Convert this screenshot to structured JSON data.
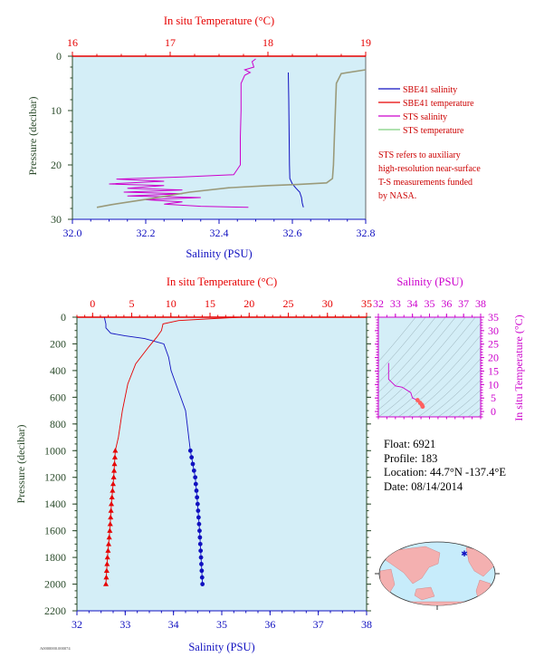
{
  "colors": {
    "plot_bg": "#d4eef7",
    "red": "#e60000",
    "blue": "#1010c0",
    "magenta": "#cc00cc",
    "green": "#7fd07f",
    "dark_green": "#2a4a2a",
    "legend_text": "#cc0000"
  },
  "top_chart": {
    "top_axis_title": "In situ Temperature (°C)",
    "bottom_axis_title": "Salinity (PSU)",
    "left_axis_title": "Pressure (decibar)",
    "legend": [
      {
        "label": "SBE41 salinity",
        "color": "#1010c0"
      },
      {
        "label": "SBE41 temperature",
        "color": "#e60000"
      },
      {
        "label": "STS salinity",
        "color": "#cc00cc"
      },
      {
        "label": "STS temperature",
        "color": "#7fd07f"
      }
    ],
    "note": [
      "STS refers to auxiliary",
      "high-resolution near-surface",
      "T-S measurements funded",
      "by NASA."
    ]
  },
  "bottom_chart": {
    "top_axis_title": "In situ Temperature (°C)",
    "bottom_axis_title": "Salinity (PSU)",
    "left_axis_title": "Pressure (decibar)",
    "footer_code": "A0000000.000074"
  },
  "ts_chart": {
    "top_axis_title": "Salinity (PSU)",
    "right_axis_title": "In situ Temperature (°C)"
  },
  "float_info": {
    "float": "Float:  6921",
    "profile": "Profile:  183",
    "location": "Location:  44.7°N  -137.4°E",
    "date": "Date:  08/14/2014"
  },
  "chart_data": [
    {
      "type": "line",
      "title": "",
      "y_axis": {
        "label": "Pressure (decibar)",
        "range": [
          0,
          30
        ],
        "inverted": true,
        "ticks": [
          0,
          10,
          20,
          30
        ]
      },
      "x_bottom": {
        "label": "Salinity (PSU)",
        "range": [
          32.0,
          32.8
        ],
        "ticks": [
          "32.0",
          "32.2",
          "32.4",
          "32.6",
          "32.8"
        ]
      },
      "x_top": {
        "label": "In situ Temperature (°C)",
        "range": [
          16,
          19
        ],
        "ticks": [
          "16",
          "17",
          "18",
          "19"
        ]
      },
      "series": [
        {
          "name": "SBE41 salinity",
          "axis": "salinity",
          "points": [
            [
              32.589,
              3
            ],
            [
              32.59,
              8
            ],
            [
              32.591,
              14
            ],
            [
              32.592,
              20
            ],
            [
              32.593,
              22.5
            ],
            [
              32.6,
              23.5
            ],
            [
              32.61,
              24.3
            ],
            [
              32.62,
              25
            ],
            [
              32.625,
              26
            ],
            [
              32.627,
              27
            ],
            [
              32.63,
              27.8
            ]
          ]
        },
        {
          "name": "SBE41 temperature",
          "axis": "temperature",
          "points": []
        },
        {
          "name": "STS salinity",
          "axis": "salinity",
          "points": [
            [
              32.5,
              0.5
            ],
            [
              32.49,
              1
            ],
            [
              32.495,
              2
            ],
            [
              32.47,
              2.5
            ],
            [
              32.485,
              3
            ],
            [
              32.47,
              3.5
            ],
            [
              32.46,
              5
            ],
            [
              32.46,
              10
            ],
            [
              32.458,
              15
            ],
            [
              32.458,
              20
            ],
            [
              32.44,
              21.8
            ],
            [
              32.3,
              22.2
            ],
            [
              32.12,
              22.6
            ],
            [
              32.25,
              23
            ],
            [
              32.1,
              23.5
            ],
            [
              32.25,
              23.8
            ],
            [
              32.15,
              24.3
            ],
            [
              32.3,
              24.6
            ],
            [
              32.14,
              25
            ],
            [
              32.3,
              25.3
            ],
            [
              32.15,
              25.7
            ],
            [
              32.35,
              26
            ],
            [
              32.2,
              26.4
            ],
            [
              32.3,
              26.8
            ],
            [
              32.25,
              27.2
            ],
            [
              32.35,
              27.6
            ],
            [
              32.48,
              27.8
            ]
          ]
        },
        {
          "name": "STS temperature",
          "axis": "temperature",
          "points": [
            [
              19.0,
              2.5
            ],
            [
              18.75,
              3.2
            ],
            [
              18.7,
              5
            ],
            [
              18.69,
              10
            ],
            [
              18.68,
              15
            ],
            [
              18.67,
              20
            ],
            [
              18.66,
              22.5
            ],
            [
              18.6,
              23.3
            ],
            [
              18.3,
              23.6
            ],
            [
              18.0,
              23.8
            ],
            [
              17.6,
              24.2
            ],
            [
              17.2,
              25
            ],
            [
              16.8,
              26.2
            ],
            [
              16.4,
              27.3
            ],
            [
              16.25,
              27.8
            ]
          ]
        }
      ]
    },
    {
      "type": "line",
      "title": "",
      "y_axis": {
        "label": "Pressure (decibar)",
        "range": [
          0,
          2200
        ],
        "inverted": true,
        "ticks": [
          0,
          200,
          400,
          600,
          800,
          1000,
          1200,
          1400,
          1600,
          1800,
          2000,
          2200
        ]
      },
      "x_bottom": {
        "label": "Salinity (PSU)",
        "range": [
          32,
          38
        ],
        "ticks": [
          32,
          33,
          34,
          35,
          36,
          37,
          38
        ]
      },
      "x_top": {
        "label": "In situ Temperature (°C)",
        "range": [
          -2,
          35
        ],
        "ticks": [
          0,
          5,
          10,
          15,
          20,
          25,
          30,
          35
        ]
      },
      "series": [
        {
          "name": "salinity",
          "axis": "salinity",
          "points": [
            [
              32.57,
              0
            ],
            [
              32.58,
              20
            ],
            [
              32.6,
              50
            ],
            [
              32.6,
              80
            ],
            [
              32.7,
              120
            ],
            [
              33.0,
              140
            ],
            [
              33.4,
              160
            ],
            [
              33.8,
              200
            ],
            [
              33.9,
              300
            ],
            [
              33.95,
              400
            ],
            [
              34.05,
              500
            ],
            [
              34.15,
              600
            ],
            [
              34.25,
              700
            ],
            [
              34.35,
              1000
            ],
            [
              34.4,
              1100
            ],
            [
              34.45,
              1200
            ],
            [
              34.5,
              1400
            ],
            [
              34.54,
              1600
            ],
            [
              34.57,
              1800
            ],
            [
              34.6,
              2000
            ]
          ]
        },
        {
          "name": "temperature",
          "axis": "temperature",
          "points": [
            [
              19,
              0
            ],
            [
              15.5,
              10
            ],
            [
              11,
              25
            ],
            [
              9,
              50
            ],
            [
              8.8,
              100
            ],
            [
              8.2,
              150
            ],
            [
              7.2,
              220
            ],
            [
              5.5,
              350
            ],
            [
              4.5,
              500
            ],
            [
              3.8,
              700
            ],
            [
              3.3,
              900
            ],
            [
              2.9,
              1000
            ],
            [
              2.7,
              1200
            ],
            [
              2.4,
              1400
            ],
            [
              2.2,
              1600
            ],
            [
              1.9,
              1800
            ],
            [
              1.7,
              2000
            ]
          ]
        }
      ]
    },
    {
      "type": "line",
      "title": "",
      "x_top": {
        "label": "Salinity (PSU)",
        "range": [
          32,
          38
        ],
        "ticks": [
          32,
          33,
          34,
          35,
          36,
          37,
          38
        ]
      },
      "y_right": {
        "label": "In situ Temperature (°C)",
        "range": [
          -2,
          35
        ],
        "ticks": [
          0,
          5,
          10,
          15,
          20,
          25,
          30,
          35
        ]
      },
      "series": [
        {
          "name": "T-S",
          "points": [
            [
              32.6,
              18
            ],
            [
              32.6,
              12
            ],
            [
              33.0,
              9.5
            ],
            [
              33.4,
              9
            ],
            [
              33.9,
              7
            ],
            [
              34.0,
              5
            ],
            [
              34.3,
              4.2
            ],
            [
              34.45,
              3.2
            ],
            [
              34.55,
              2.5
            ],
            [
              34.6,
              1.8
            ]
          ]
        }
      ]
    }
  ]
}
